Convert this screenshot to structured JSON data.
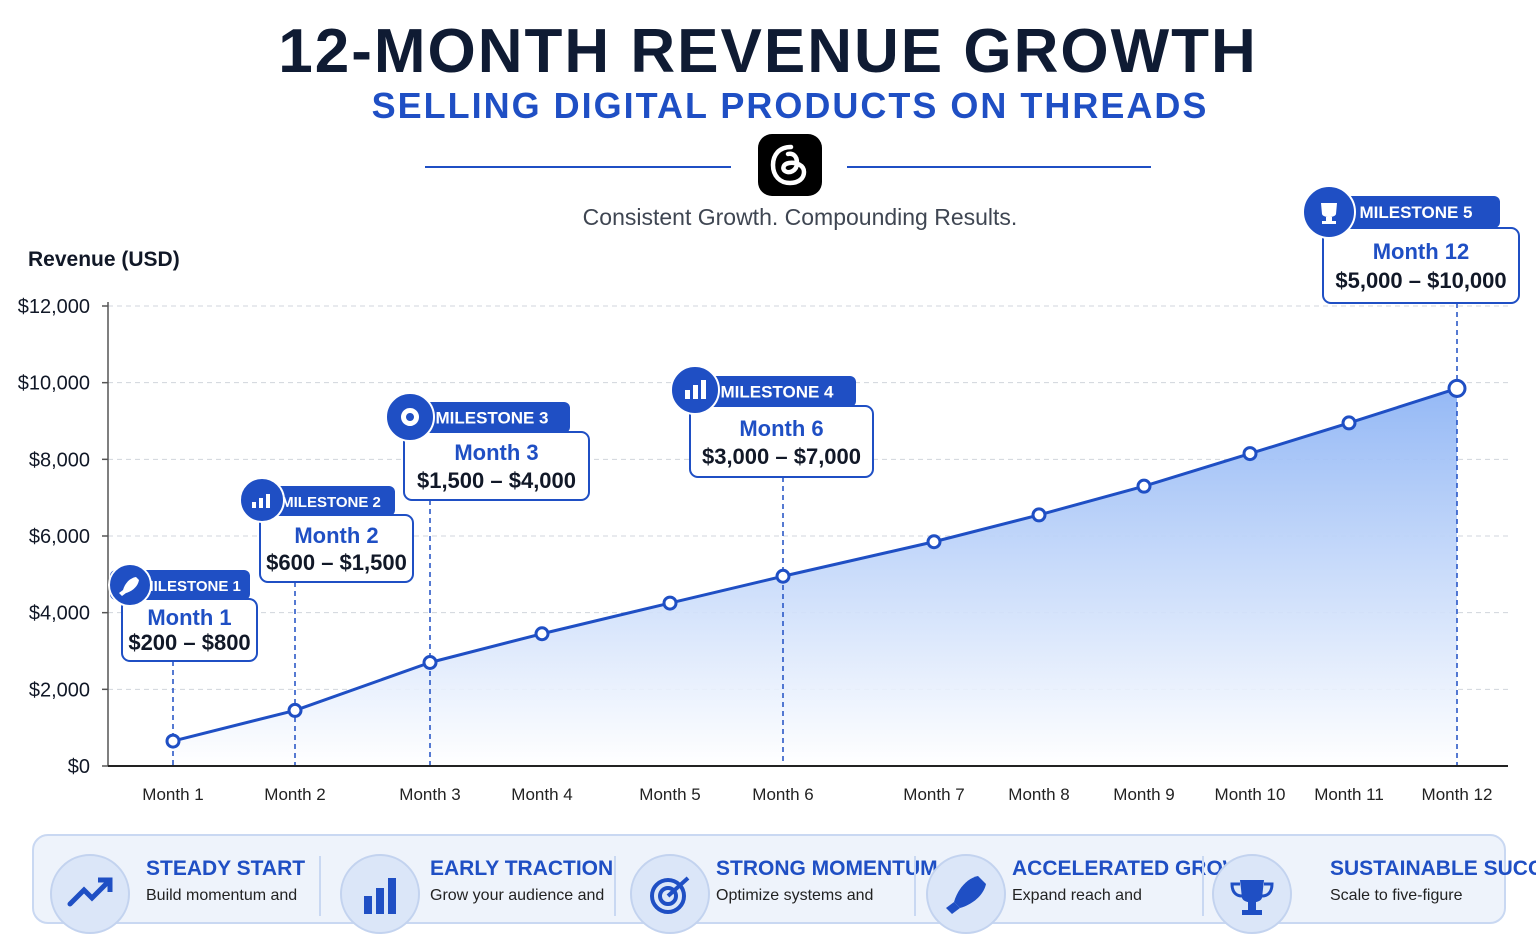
{
  "header": {
    "title": "12-MONTH REVENUE GROWTH",
    "subtitle": "SELLING DIGITAL PRODUCTS ON THREADS",
    "logo_icon": "threads-logo-icon",
    "tagline": "Consistent Growth. Compounding Results."
  },
  "colors": {
    "accent": "#1f4fc4",
    "title": "#0f1b33",
    "area_top": "#8fb5f5",
    "area_bottom": "#ffffff"
  },
  "chart_data": {
    "type": "area",
    "ylabel": "Revenue (USD)",
    "xlabel": "",
    "ylim": [
      0,
      12000
    ],
    "yticks": [
      0,
      2000,
      4000,
      6000,
      8000,
      10000,
      12000
    ],
    "ytick_labels": [
      "$0",
      "$2,000",
      "$4,000",
      "$6,000",
      "$8,000",
      "$10,000",
      "$12,000"
    ],
    "grid": true,
    "categories": [
      "Month 1",
      "Month 2",
      "Month 3",
      "Month 4",
      "Month 5",
      "Month 6",
      "Month 7",
      "Month 8",
      "Month 9",
      "Month 10",
      "Month 11",
      "Month 12"
    ],
    "series": [
      {
        "values": [
          650,
          1450,
          2700,
          3450,
          4250,
          4950,
          5850,
          6550,
          7300,
          8150,
          8950,
          9850
        ]
      }
    ],
    "milestones": [
      {
        "tag": "MILESTONE 1",
        "month": "Month 1",
        "range": "$200 – $800",
        "icon": "rocket-icon",
        "index": 0
      },
      {
        "tag": "MILESTONE 2",
        "month": "Month 2",
        "range": "$600 – $1,500",
        "icon": "bar-chart-rising-icon",
        "index": 1
      },
      {
        "tag": "MILESTONE 3",
        "month": "Month 3",
        "range": "$1,500 – $4,000",
        "icon": "target-icon",
        "index": 2
      },
      {
        "tag": "MILESTONE 4",
        "month": "Month 6",
        "range": "$3,000 – $7,000",
        "icon": "bar-chart-icon",
        "index": 5
      },
      {
        "tag": "MILESTONE 5",
        "month": "Month 12",
        "range": "$5,000 – $10,000",
        "icon": "trophy-icon",
        "index": 11
      }
    ]
  },
  "footer": {
    "items": [
      {
        "title": "STEADY START",
        "desc": "Build momentum and",
        "icon": "trend-up-icon"
      },
      {
        "title": "EARLY TRACTION",
        "desc": "Grow your audience and",
        "icon": "bar-chart-icon"
      },
      {
        "title": "STRONG MOMENTUM",
        "desc": "Optimize systems and",
        "icon": "target-icon"
      },
      {
        "title": "ACCELERATED GROWTH",
        "desc": "Expand reach and",
        "icon": "rocket-icon"
      },
      {
        "title": "SUSTAINABLE SUCCESS",
        "desc": "Scale to five-figure",
        "icon": "trophy-icon"
      }
    ]
  }
}
